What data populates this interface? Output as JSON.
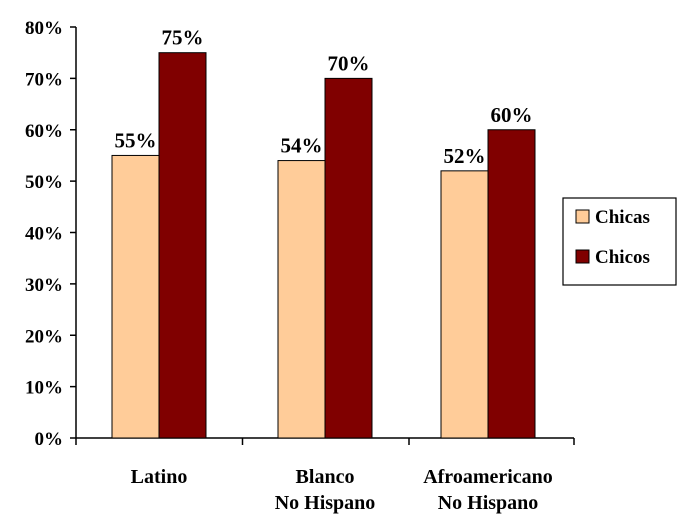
{
  "chart_data": {
    "type": "bar",
    "categories": [
      [
        "Latino"
      ],
      [
        "Blanco",
        "No Hispano"
      ],
      [
        "Afroamericano",
        "No Hispano"
      ]
    ],
    "series": [
      {
        "name": "Chicas",
        "values": [
          55,
          54,
          52
        ],
        "labels": [
          "55%",
          "54%",
          "52%"
        ],
        "color": "#FFCC99"
      },
      {
        "name": "Chicos",
        "values": [
          75,
          70,
          60
        ],
        "labels": [
          "75%",
          "70%",
          "60%"
        ],
        "color": "#800000"
      }
    ],
    "ylim": [
      0,
      80
    ],
    "yticks": [
      0,
      10,
      20,
      30,
      40,
      50,
      60,
      70,
      80
    ],
    "ytick_labels": [
      "0%",
      "10%",
      "20%",
      "30%",
      "40%",
      "50%",
      "60%",
      "70%",
      "80%"
    ],
    "title": "",
    "xlabel": "",
    "ylabel": "",
    "grid": false,
    "legend_position": "right"
  }
}
